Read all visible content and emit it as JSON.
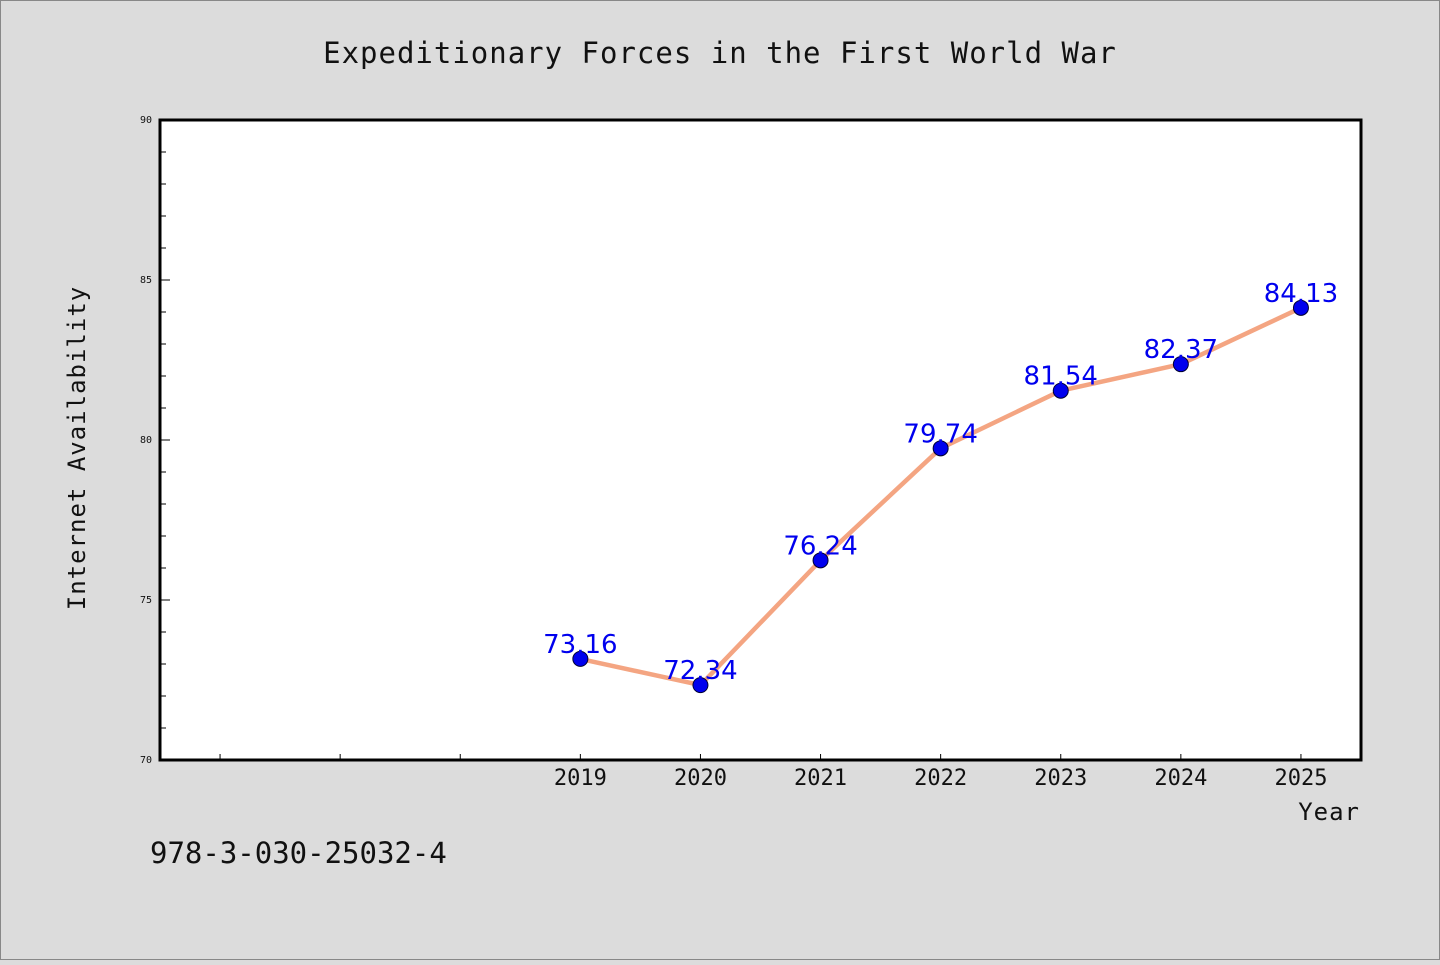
{
  "chart_data": {
    "type": "line",
    "title": "Expeditionary Forces in the First World War",
    "xlabel": "Year",
    "ylabel": "Internet Availability",
    "x": [
      "2019",
      "2020",
      "2021",
      "2022",
      "2023",
      "2024",
      "2025"
    ],
    "x_tick_labels": [
      "2019",
      "2020",
      "2021",
      "2022",
      "2023",
      "2024",
      "2025"
    ],
    "xlim": [
      2015.5,
      2025.5
    ],
    "ylim": [
      70,
      90
    ],
    "y_ticks": [
      70,
      75,
      80,
      85,
      90
    ],
    "y_tick_labels": [
      "70",
      "75",
      "80",
      "85",
      "90"
    ],
    "series": [
      {
        "values": [
          73.16,
          72.34,
          76.24,
          79.74,
          81.54,
          82.37,
          84.13
        ],
        "data_labels": [
          "73.16",
          "72.34",
          "76.24",
          "79.74",
          "81.54",
          "82.37",
          "84.13"
        ],
        "line_color": "#f4a582",
        "marker_color": "#0000ee"
      }
    ],
    "grid": false,
    "legend": "none",
    "plot_background": "#ffffff",
    "figure_background": "#dcdcdc"
  },
  "footer": {
    "isbn": "978-3-030-25032-4"
  }
}
